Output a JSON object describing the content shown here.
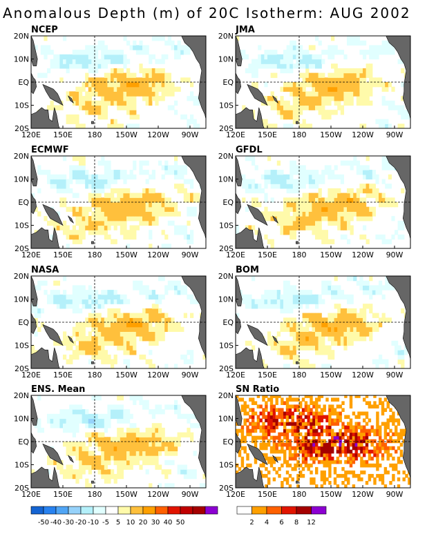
{
  "title": "Anomalous Depth (m) of 20C Isotherm: AUG 2002",
  "x_tick_labels": [
    "120E",
    "150E",
    "180",
    "150W",
    "120W",
    "90W"
  ],
  "y_tick_labels": [
    "20N",
    "10N",
    "EQ",
    "10S",
    "20S"
  ],
  "panels": [
    {
      "name": "NCEP"
    },
    {
      "name": "JMA"
    },
    {
      "name": "ECMWF"
    },
    {
      "name": "GFDL"
    },
    {
      "name": "NASA"
    },
    {
      "name": "BOM"
    },
    {
      "name": "ENS. Mean"
    },
    {
      "name": "SN Ratio"
    }
  ],
  "colorbar_anomaly": {
    "colors": [
      "#1464d2",
      "#2882f0",
      "#50a5f5",
      "#96d2fa",
      "#b4f0fa",
      "#e1ffff",
      "#ffffff",
      "#fffaaa",
      "#ffc03c",
      "#ffa000",
      "#ff6000",
      "#e11400",
      "#c00000",
      "#a50000",
      "#8c00d2"
    ],
    "labels": [
      "-50",
      "-40",
      "-30",
      "-20",
      "-10",
      "-5",
      "5",
      "10",
      "20",
      "30",
      "40",
      "50"
    ]
  },
  "colorbar_snr": {
    "colors": [
      "#ffffff",
      "#ffa000",
      "#ff6000",
      "#e11400",
      "#a50000",
      "#8c00d2"
    ],
    "labels": [
      "2",
      "4",
      "6",
      "8",
      "12"
    ]
  },
  "colors": {
    "land": "#666666",
    "frame": "#000000"
  }
}
